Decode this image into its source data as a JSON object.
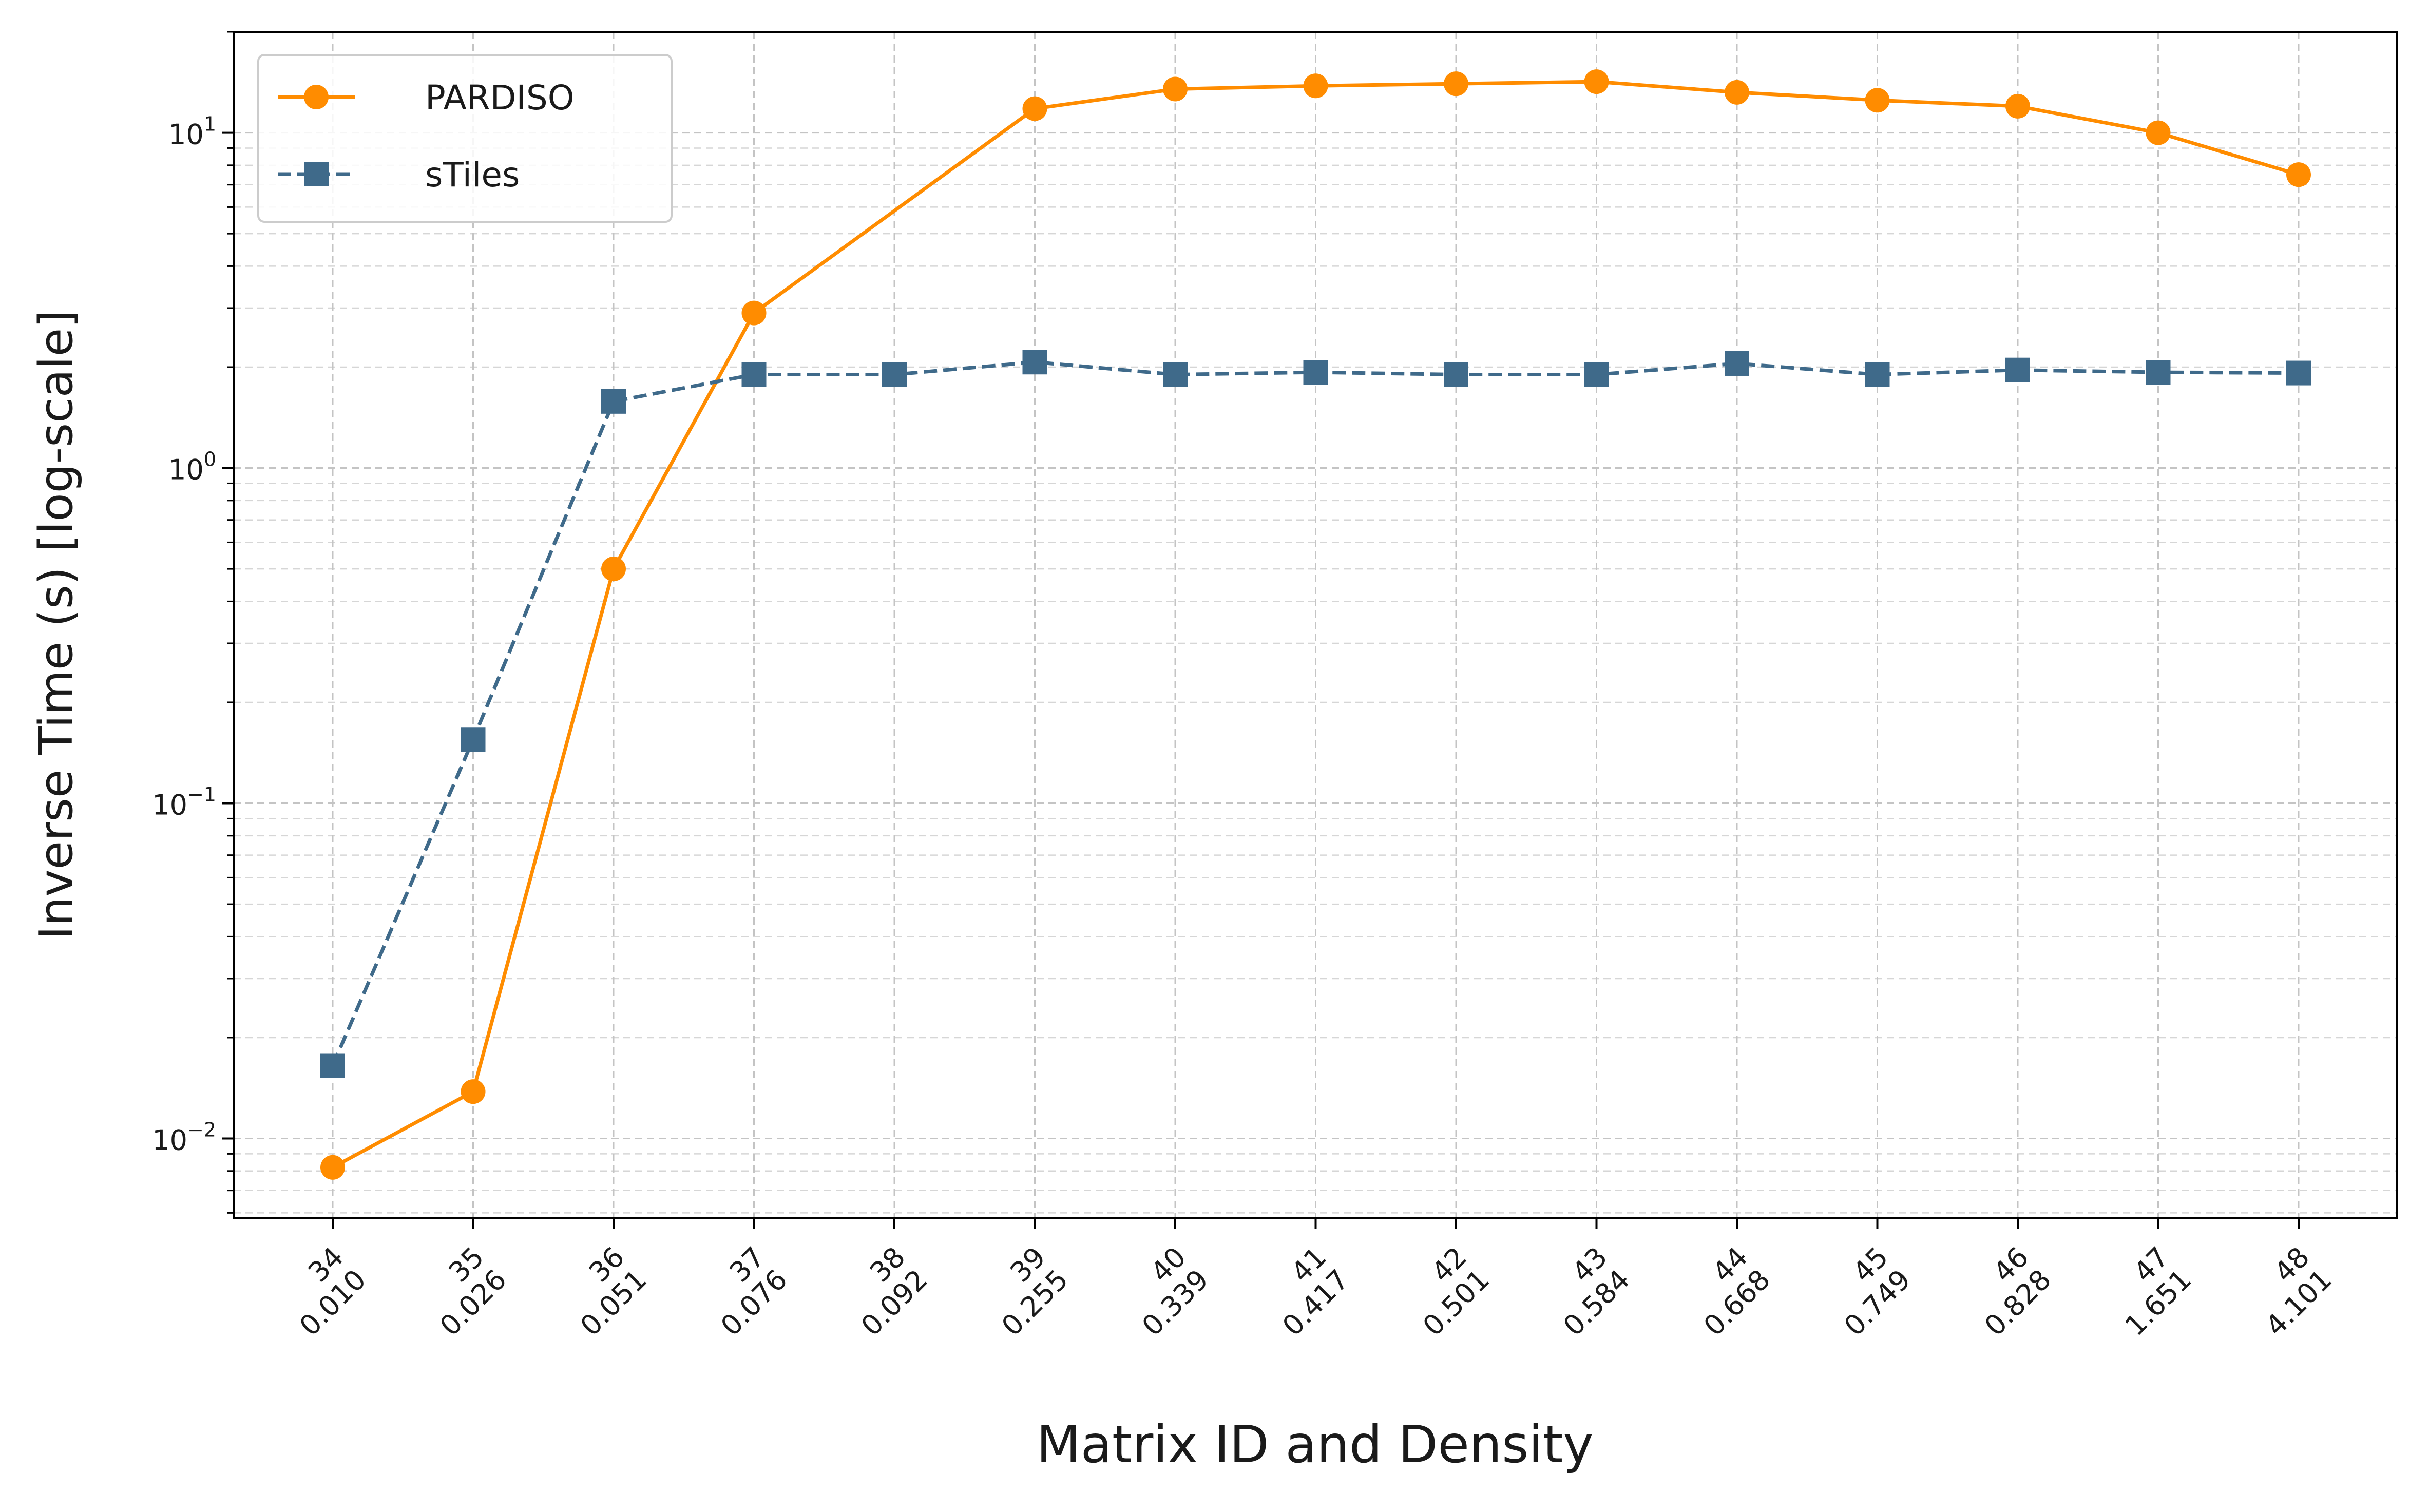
{
  "chart_data": {
    "type": "line",
    "title": "",
    "xlabel": "Matrix ID and Density",
    "ylabel": "Inverse Time (s) [log-scale]",
    "yscale": "log",
    "ylim": [
      0.0058,
      20
    ],
    "grid": true,
    "grid_minor": true,
    "legend_position": "upper-left",
    "categories": [
      {
        "id": "34",
        "density": "0.010"
      },
      {
        "id": "35",
        "density": "0.026"
      },
      {
        "id": "36",
        "density": "0.051"
      },
      {
        "id": "37",
        "density": "0.076"
      },
      {
        "id": "38",
        "density": "0.092"
      },
      {
        "id": "39",
        "density": "0.255"
      },
      {
        "id": "40",
        "density": "0.339"
      },
      {
        "id": "41",
        "density": "0.417"
      },
      {
        "id": "42",
        "density": "0.501"
      },
      {
        "id": "43",
        "density": "0.584"
      },
      {
        "id": "44",
        "density": "0.668"
      },
      {
        "id": "45",
        "density": "0.749"
      },
      {
        "id": "46",
        "density": "0.828"
      },
      {
        "id": "47",
        "density": "1.651"
      },
      {
        "id": "48",
        "density": "4.101"
      }
    ],
    "y_ticks": [
      {
        "value": 0.01,
        "base": "10",
        "exp": "−2"
      },
      {
        "value": 0.1,
        "base": "10",
        "exp": "−1"
      },
      {
        "value": 1,
        "base": "10",
        "exp": "0"
      },
      {
        "value": 10,
        "base": "10",
        "exp": "1"
      }
    ],
    "series": [
      {
        "name": "PARDISO",
        "color": "#ff8c00",
        "line_style": "solid",
        "marker": "circle",
        "values": [
          0.0082,
          0.0138,
          0.5,
          2.9,
          null,
          11.8,
          13.5,
          13.8,
          14.0,
          14.2,
          13.2,
          12.5,
          12.0,
          10.0,
          7.5
        ]
      },
      {
        "name": "sTiles",
        "color": "#3f6a8a",
        "line_style": "dashed",
        "marker": "square",
        "values": [
          0.0165,
          0.155,
          1.58,
          1.9,
          1.9,
          2.07,
          1.9,
          1.93,
          1.9,
          1.9,
          2.05,
          1.9,
          1.96,
          1.93,
          1.92
        ]
      }
    ]
  }
}
